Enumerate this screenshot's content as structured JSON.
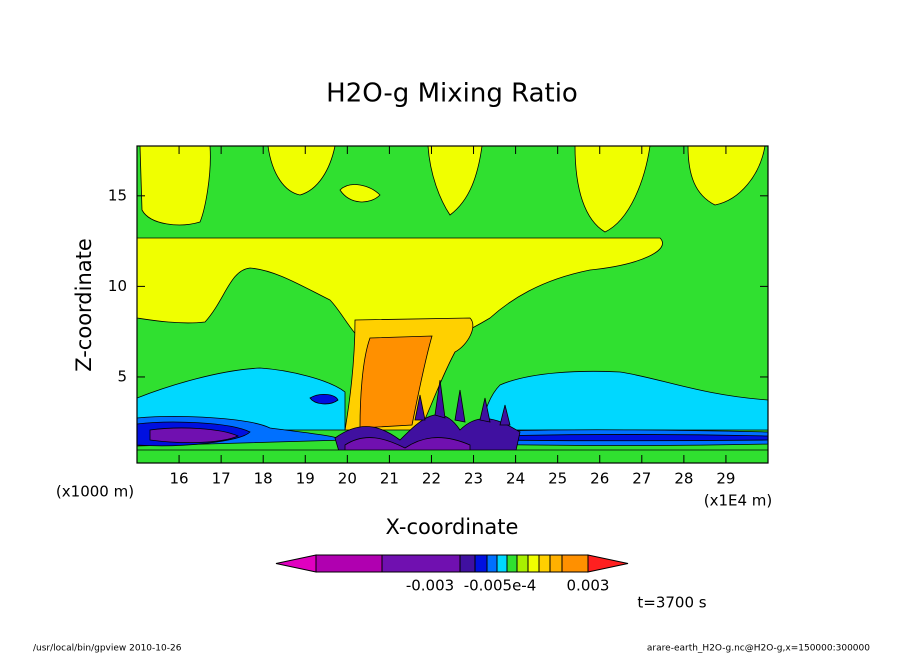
{
  "chart_data": {
    "type": "contour",
    "title": "H2O-g Mixing Ratio",
    "x_label": "X-coordinate",
    "y_label": "Z-coordinate",
    "x_unit": "(x1E4 m)",
    "y_unit": "(x1000 m)",
    "xlim": [
      15,
      30
    ],
    "xticks": [
      16,
      17,
      18,
      19,
      20,
      21,
      22,
      23,
      24,
      25,
      26,
      27,
      28,
      29
    ],
    "ylim": [
      0.25,
      17.75
    ],
    "yticks": [
      5,
      10,
      15
    ],
    "colorbar": {
      "colors": [
        "#e000c0",
        "#b000b0",
        "#7010b0",
        "#4010a0",
        "#0010e0",
        "#0070ff",
        "#00d8ff",
        "#30e030",
        "#a8f000",
        "#f0ff00",
        "#ffd000",
        "#ffb000",
        "#ff9000",
        "#ff2020"
      ],
      "labels": [
        "-0.003",
        "-0.005e-4",
        "0.003"
      ]
    },
    "time_label": "t=3700 s",
    "footer_left": "/usr/local/bin/gpview  2010-10-26",
    "footer_right": "arare-earth_H2O-g.nc@H2O-g,x=150000:300000"
  }
}
